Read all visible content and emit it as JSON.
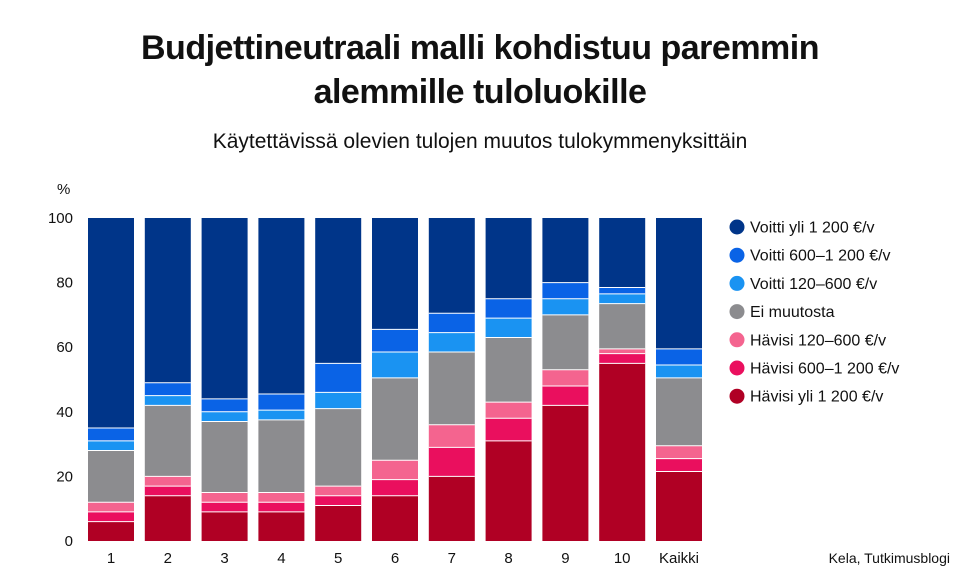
{
  "title_line1": "Budjettineutraali malli kohdistuu paremmin",
  "title_line2": "alemmille tuloluokille",
  "subtitle": "Käytettävissä olevien tulojen muutos tulokymmenyksittäin",
  "source": "Kela, Tutkimusblogi",
  "chart_data": {
    "type": "bar",
    "stacked": true,
    "title": "Budjettineutraali malli kohdistuu paremmin alemmille tuloluokille",
    "subtitle": "Käytettävissä olevien tulojen muutos tulokymmenyksittäin",
    "ylabel": "%",
    "ylim": [
      0,
      100
    ],
    "yticks": [
      0,
      20,
      40,
      60,
      80,
      100
    ],
    "grid": false,
    "legend_position": "right",
    "categories": [
      "1",
      "2",
      "3",
      "4",
      "5",
      "6",
      "7",
      "8",
      "9",
      "10",
      "Kaikki"
    ],
    "series": [
      {
        "name": "Hävisi yli 1 200 €/v",
        "color": "#b00024",
        "values": [
          6,
          14,
          9,
          9,
          11,
          14,
          20,
          31,
          42,
          55,
          21.5
        ]
      },
      {
        "name": "Hävisi 600–1 200 €/v",
        "color": "#ea0f5e",
        "values": [
          3,
          3,
          3,
          3,
          3,
          5,
          9,
          7,
          6,
          3,
          4
        ]
      },
      {
        "name": "Hävisi 120–600 €/v",
        "color": "#f4648f",
        "values": [
          3,
          3,
          3,
          3,
          3,
          6,
          7,
          5,
          5,
          1.5,
          4
        ]
      },
      {
        "name": "Ei muutosta",
        "color": "#8c8c8f",
        "values": [
          16,
          22,
          22,
          22.5,
          24,
          25.5,
          22.5,
          20,
          17,
          14,
          21
        ]
      },
      {
        "name": "Voitti 120–600 €/v",
        "color": "#1a93f2",
        "values": [
          3,
          3,
          3,
          3,
          5,
          8,
          6,
          6,
          5,
          3,
          4
        ]
      },
      {
        "name": "Voitti 600–1 200 €/v",
        "color": "#0a63e6",
        "values": [
          4,
          4,
          4,
          5,
          9,
          7,
          6,
          6,
          5,
          2,
          5
        ]
      },
      {
        "name": "Voitti yli 1 200 €/v",
        "color": "#003589",
        "values": [
          65,
          51,
          56,
          54.5,
          45,
          34.5,
          29.5,
          25,
          20,
          21.5,
          40.5
        ]
      }
    ],
    "legend_order": [
      "Voitti yli 1 200 €/v",
      "Voitti 600–1 200 €/v",
      "Voitti 120–600 €/v",
      "Ei muutosta",
      "Hävisi 120–600 €/v",
      "Hävisi 600–1 200 €/v",
      "Hävisi yli 1 200 €/v"
    ]
  }
}
